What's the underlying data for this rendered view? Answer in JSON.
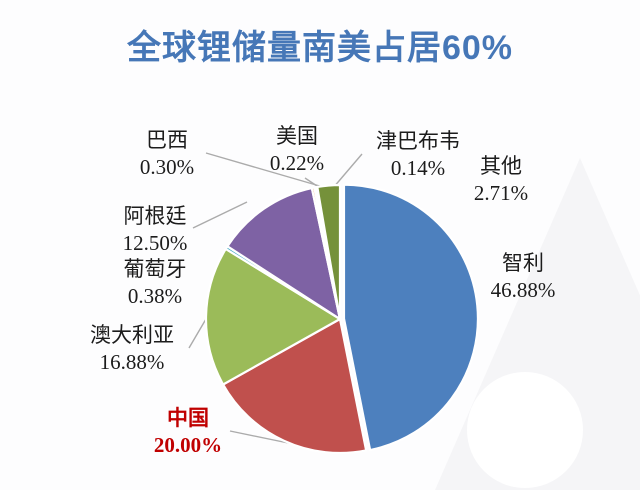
{
  "title": {
    "text": "全球锂储量南美占居60%",
    "color": "#4677B7"
  },
  "chart_data": {
    "type": "pie",
    "title": "全球锂储量南美占居60%",
    "unit": "%",
    "start_angle_deg": 0,
    "direction": "clockwise",
    "legend_position": "none",
    "labels_outside": true,
    "slices": [
      {
        "key": "chile",
        "name": "智利",
        "value": 46.88,
        "pct_text": "46.88%",
        "color": "#4D80BE",
        "exploded": true
      },
      {
        "key": "china",
        "name": "中国",
        "value": 20.0,
        "pct_text": "20.00%",
        "color": "#C0504D",
        "label_color": "#C00000",
        "label_bold": true
      },
      {
        "key": "australia",
        "name": "澳大利亚",
        "value": 16.88,
        "pct_text": "16.88%",
        "color": "#9BBB59"
      },
      {
        "key": "portugal",
        "name": "葡萄牙",
        "value": 0.38,
        "pct_text": "0.38%",
        "color": "#4BACC6"
      },
      {
        "key": "argentina",
        "name": "阿根廷",
        "value": 12.5,
        "pct_text": "12.50%",
        "color": "#7E62A4"
      },
      {
        "key": "brazil",
        "name": "巴西",
        "value": 0.3,
        "pct_text": "0.30%",
        "color": "#F29546"
      },
      {
        "key": "usa",
        "name": "美国",
        "value": 0.22,
        "pct_text": "0.22%",
        "color": "#2C4D75"
      },
      {
        "key": "zimbabwe",
        "name": "津巴布韦",
        "value": 0.14,
        "pct_text": "0.14%",
        "color": "#772C2A"
      },
      {
        "key": "others",
        "name": "其他",
        "value": 2.71,
        "pct_text": "2.71%",
        "color": "#75913A"
      }
    ]
  },
  "styles": {
    "leader_line_color": "#ABABAB",
    "slice_border_color": "#FFFFFF",
    "label_text_color": "#1C1C1C",
    "watermark_color": "#F5F5F7",
    "background_color": "#FDFDFE"
  }
}
